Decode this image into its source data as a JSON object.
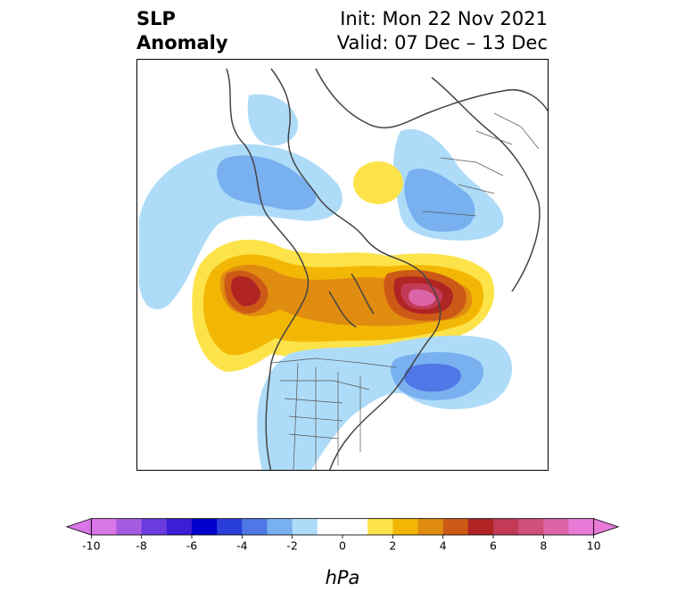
{
  "header": {
    "left_line1": "SLP",
    "left_line2": "Anomaly",
    "right_line1": "Init: Mon 22 Nov 2021",
    "right_line2": "Valid: 07 Dec – 13 Dec"
  },
  "colorbar": {
    "unit_label": "hPa",
    "tick_labels": [
      "-10",
      "-8",
      "-6",
      "-4",
      "-2",
      "0",
      "2",
      "4",
      "6",
      "8",
      "10"
    ],
    "colors": [
      "#d977e8",
      "#a65ae0",
      "#6a3ce0",
      "#3b1fd6",
      "#0000cc",
      "#2a3fd9",
      "#4f78e6",
      "#78b0f0",
      "#aedcf8",
      "#ffffff",
      "#ffffff",
      "#fde34a",
      "#f2b705",
      "#e08c10",
      "#cc5a16",
      "#b02424",
      "#c23a55",
      "#d0507a",
      "#dc64a8",
      "#e87ad8"
    ]
  },
  "map": {
    "region": "North America / North Pacific / Arctic",
    "projection": "polar stereographic"
  }
}
